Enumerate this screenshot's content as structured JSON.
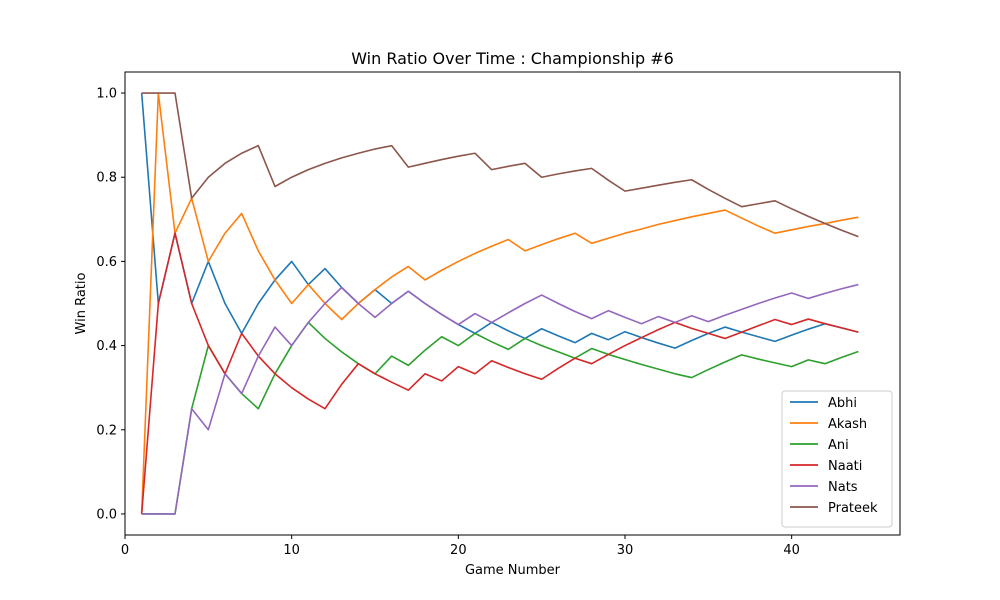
{
  "chart_data": {
    "type": "line",
    "title": "Win Ratio Over Time : Championship #6",
    "xlabel": "Game Number",
    "ylabel": "Win Ratio",
    "xlim": [
      0,
      46.5
    ],
    "ylim": [
      -0.05,
      1.05
    ],
    "xticks": [
      0,
      10,
      20,
      30,
      40
    ],
    "yticks": [
      0.0,
      0.2,
      0.4,
      0.6,
      0.8,
      1.0
    ],
    "xtick_labels": [
      "0",
      "10",
      "20",
      "30",
      "40"
    ],
    "ytick_labels": [
      "0.0",
      "0.2",
      "0.4",
      "0.6",
      "0.8",
      "1.0"
    ],
    "grid": false,
    "legend_position": "lower-right",
    "x": [
      1,
      2,
      3,
      4,
      5,
      6,
      7,
      8,
      9,
      10,
      11,
      12,
      13,
      14,
      15,
      16,
      17,
      18,
      19,
      20,
      21,
      22,
      23,
      24,
      25,
      26,
      27,
      28,
      29,
      30,
      31,
      32,
      33,
      34,
      35,
      36,
      37,
      38,
      39,
      40,
      41,
      42,
      43,
      44
    ],
    "series": [
      {
        "name": "Abhi",
        "color": "#1f77b4",
        "values": [
          1.0,
          0.5,
          0.667,
          0.5,
          0.6,
          0.5,
          0.429,
          0.5,
          0.556,
          0.6,
          0.545,
          0.583,
          0.538,
          0.5,
          0.533,
          0.5,
          0.529,
          0.5,
          0.474,
          0.45,
          0.429,
          0.455,
          0.435,
          0.417,
          0.44,
          0.423,
          0.407,
          0.429,
          0.414,
          0.433,
          0.419,
          0.406,
          0.394,
          0.412,
          0.429,
          0.444,
          0.432,
          0.421,
          0.41,
          0.425,
          0.439,
          0.452,
          0.442,
          0.432
        ]
      },
      {
        "name": "Akash",
        "color": "#ff7f0e",
        "values": [
          0.0,
          1.0,
          0.667,
          0.75,
          0.6,
          0.667,
          0.714,
          0.625,
          0.556,
          0.5,
          0.545,
          0.5,
          0.462,
          0.5,
          0.533,
          0.563,
          0.588,
          0.556,
          0.579,
          0.6,
          0.619,
          0.636,
          0.652,
          0.625,
          0.64,
          0.654,
          0.667,
          0.643,
          0.655,
          0.667,
          0.677,
          0.688,
          0.697,
          0.706,
          0.714,
          0.722,
          0.703,
          0.684,
          0.667,
          0.675,
          0.683,
          0.69,
          0.698,
          0.705
        ]
      },
      {
        "name": "Ani",
        "color": "#2ca02c",
        "values": [
          0.0,
          0.0,
          0.0,
          0.25,
          0.4,
          0.333,
          0.286,
          0.25,
          0.333,
          0.4,
          0.455,
          0.417,
          0.385,
          0.357,
          0.333,
          0.375,
          0.353,
          0.389,
          0.421,
          0.4,
          0.429,
          0.409,
          0.391,
          0.417,
          0.4,
          0.385,
          0.37,
          0.393,
          0.379,
          0.367,
          0.355,
          0.344,
          0.333,
          0.324,
          0.343,
          0.361,
          0.378,
          0.368,
          0.359,
          0.35,
          0.366,
          0.357,
          0.372,
          0.386
        ]
      },
      {
        "name": "Naati",
        "color": "#d62728",
        "values": [
          0.0,
          0.5,
          0.667,
          0.5,
          0.4,
          0.333,
          0.429,
          0.375,
          0.333,
          0.3,
          0.273,
          0.25,
          0.308,
          0.357,
          0.333,
          0.313,
          0.294,
          0.333,
          0.316,
          0.35,
          0.333,
          0.364,
          0.348,
          0.333,
          0.32,
          0.346,
          0.37,
          0.357,
          0.379,
          0.4,
          0.419,
          0.438,
          0.455,
          0.441,
          0.429,
          0.417,
          0.432,
          0.447,
          0.462,
          0.45,
          0.463,
          0.452,
          0.442,
          0.432
        ]
      },
      {
        "name": "Nats",
        "color": "#9467bd",
        "values": [
          0.0,
          0.0,
          0.0,
          0.25,
          0.2,
          0.333,
          0.286,
          0.375,
          0.444,
          0.4,
          0.455,
          0.5,
          0.538,
          0.5,
          0.467,
          0.5,
          0.529,
          0.5,
          0.474,
          0.45,
          0.476,
          0.455,
          0.478,
          0.5,
          0.52,
          0.5,
          0.481,
          0.464,
          0.483,
          0.467,
          0.452,
          0.469,
          0.455,
          0.471,
          0.457,
          0.472,
          0.486,
          0.5,
          0.513,
          0.525,
          0.512,
          0.524,
          0.535,
          0.545
        ]
      },
      {
        "name": "Prateek",
        "color": "#8c564b",
        "values": [
          1.0,
          1.0,
          1.0,
          0.75,
          0.8,
          0.833,
          0.857,
          0.875,
          0.778,
          0.8,
          0.818,
          0.833,
          0.846,
          0.857,
          0.867,
          0.875,
          0.824,
          0.833,
          0.842,
          0.85,
          0.857,
          0.818,
          0.826,
          0.833,
          0.8,
          0.808,
          0.815,
          0.821,
          0.793,
          0.767,
          0.774,
          0.781,
          0.788,
          0.794,
          0.771,
          0.75,
          0.73,
          0.737,
          0.744,
          0.725,
          0.707,
          0.69,
          0.674,
          0.659
        ]
      }
    ]
  }
}
